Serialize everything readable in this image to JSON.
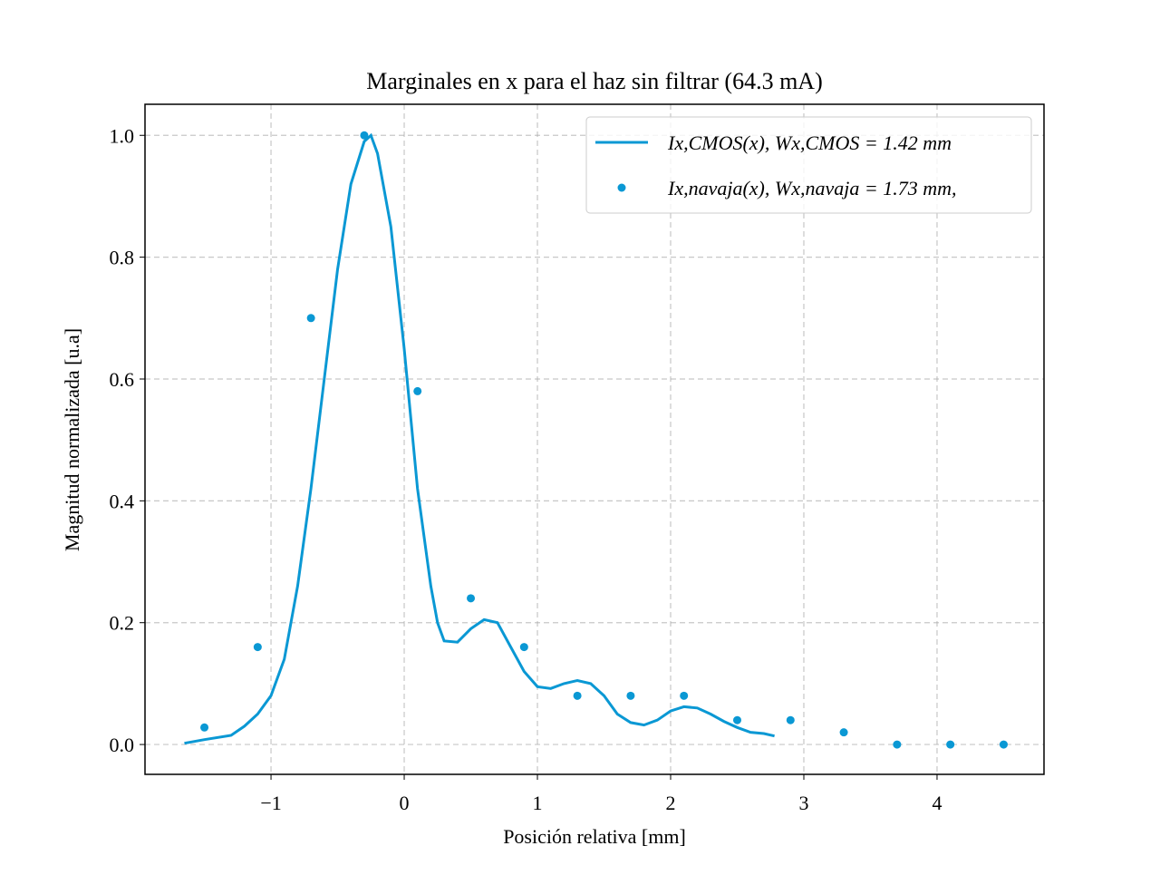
{
  "chart_data": {
    "type": "line_scatter",
    "title": "Marginales en x para el haz sin filtrar (64.3 mA)",
    "x_label": "Posición relativa [mm]",
    "y_label": "Magnitud normalizada [u.a]",
    "xlim": [
      -1.946,
      4.803
    ],
    "ylim": [
      -0.049,
      1.051
    ],
    "xticks": [
      {
        "value": -1,
        "label": "−1"
      },
      0,
      1,
      2,
      3,
      4
    ],
    "yticks": [
      {
        "value": 0,
        "label": "0.0"
      },
      0.2,
      0.4,
      0.6,
      0.8,
      {
        "value": 1,
        "label": "1.0"
      }
    ],
    "grid": true,
    "legend": "upper right",
    "series": [
      {
        "name": "Ix,CMOS(x), Wx,CMOS = 1.42 mm",
        "kind": "line",
        "color": "#0a98d4",
        "x": [
          -1.65,
          -1.5,
          -1.3,
          -1.2,
          -1.1,
          -1.0,
          -0.9,
          -0.8,
          -0.7,
          -0.6,
          -0.5,
          -0.4,
          -0.3,
          -0.25,
          -0.2,
          -0.1,
          0,
          0.1,
          0.2,
          0.25,
          0.3,
          0.4,
          0.5,
          0.6,
          0.7,
          0.8,
          0.9,
          1.0,
          1.1,
          1.2,
          1.3,
          1.4,
          1.5,
          1.6,
          1.7,
          1.8,
          1.9,
          2.0,
          2.1,
          2.2,
          2.3,
          2.4,
          2.5,
          2.6,
          2.7,
          2.78
        ],
        "values": [
          0.002,
          0.008,
          0.015,
          0.03,
          0.05,
          0.08,
          0.14,
          0.26,
          0.42,
          0.6,
          0.78,
          0.92,
          0.99,
          1.0,
          0.97,
          0.85,
          0.65,
          0.42,
          0.26,
          0.2,
          0.17,
          0.168,
          0.19,
          0.205,
          0.2,
          0.16,
          0.12,
          0.095,
          0.092,
          0.1,
          0.105,
          0.1,
          0.08,
          0.05,
          0.036,
          0.032,
          0.04,
          0.055,
          0.062,
          0.06,
          0.05,
          0.038,
          0.028,
          0.02,
          0.018,
          0.014
        ]
      },
      {
        "name": "Ix,navaja(x), Wx,navaja = 1.73 mm,",
        "kind": "scatter",
        "color": "#0a98d4",
        "x": [
          -1.5,
          -1.1,
          -0.7,
          -0.3,
          0.1,
          0.5,
          0.9,
          1.3,
          1.7,
          2.1,
          2.5,
          2.9,
          3.3,
          3.7,
          4.1,
          4.5
        ],
        "values": [
          0.028,
          0.16,
          0.7,
          1.0,
          0.58,
          0.24,
          0.16,
          0.08,
          0.08,
          0.08,
          0.04,
          0.04,
          0.02,
          0,
          0,
          0
        ]
      }
    ]
  }
}
